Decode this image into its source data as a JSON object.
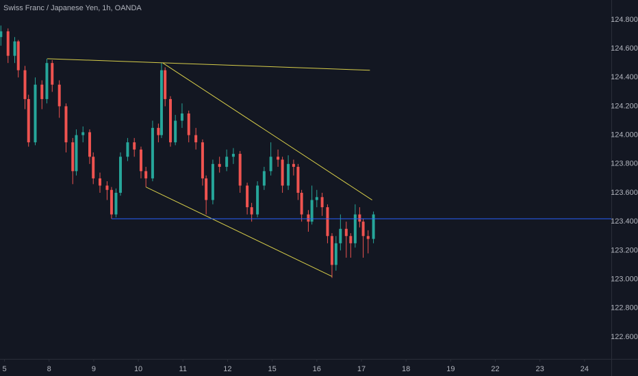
{
  "chart_data": {
    "type": "candlestick",
    "title": "Swiss Franc / Japanese Yen, 1h, OANDA",
    "up_color": "#26a69a",
    "down_color": "#ef5350",
    "grid": false,
    "xlim": [
      -0.1,
      13.6
    ],
    "xticks": [
      {
        "value": 0,
        "label": "5"
      },
      {
        "value": 1,
        "label": "8"
      },
      {
        "value": 2,
        "label": "9"
      },
      {
        "value": 3,
        "label": "10"
      },
      {
        "value": 4,
        "label": "11"
      },
      {
        "value": 5,
        "label": "12"
      },
      {
        "value": 6,
        "label": "15"
      },
      {
        "value": 7,
        "label": "16"
      },
      {
        "value": 8,
        "label": "17"
      },
      {
        "value": 9,
        "label": "18"
      },
      {
        "value": 10,
        "label": "19"
      },
      {
        "value": 11,
        "label": "22"
      },
      {
        "value": 12,
        "label": "23"
      },
      {
        "value": 13,
        "label": "24"
      }
    ],
    "ylim": [
      122.448,
      124.937
    ],
    "yticks": [
      {
        "value": 122.6,
        "label": "122.600"
      },
      {
        "value": 122.8,
        "label": "122.800"
      },
      {
        "value": 123.0,
        "label": "123.000"
      },
      {
        "value": 123.2,
        "label": "123.200"
      },
      {
        "value": 123.4,
        "label": "123.400"
      },
      {
        "value": 123.6,
        "label": "123.600"
      },
      {
        "value": 123.8,
        "label": "123.800"
      },
      {
        "value": 124.0,
        "label": "124.000"
      },
      {
        "value": 124.2,
        "label": "124.200"
      },
      {
        "value": 124.4,
        "label": "124.400"
      },
      {
        "value": 124.6,
        "label": "124.600"
      },
      {
        "value": 124.8,
        "label": "124.800"
      }
    ],
    "x": [
      -0.08,
      0.08,
      0.23,
      0.31,
      0.46,
      0.54,
      0.69,
      0.84,
      0.95,
      1.07,
      1.23,
      1.38,
      1.53,
      1.61,
      1.76,
      1.91,
      1.99,
      2.14,
      2.3,
      2.4,
      2.5,
      2.6,
      2.76,
      2.91,
      3.06,
      3.17,
      3.32,
      3.45,
      3.52,
      3.6,
      3.72,
      3.83,
      3.98,
      4.13,
      4.29,
      4.44,
      4.52,
      4.67,
      4.82,
      4.98,
      5.13,
      5.28,
      5.44,
      5.54,
      5.67,
      5.82,
      5.97,
      6.13,
      6.23,
      6.36,
      6.48,
      6.58,
      6.66,
      6.81,
      6.89,
      7.0,
      7.12,
      7.24,
      7.34,
      7.43,
      7.53,
      7.66,
      7.76,
      7.86,
      7.96,
      8.04,
      8.15,
      8.27
    ],
    "open": [
      124.68,
      124.72,
      124.55,
      124.65,
      124.45,
      124.25,
      123.95,
      124.35,
      124.25,
      124.5,
      124.35,
      124.2,
      123.95,
      123.75,
      124.0,
      124.02,
      123.85,
      123.7,
      123.65,
      123.62,
      123.45,
      123.6,
      123.85,
      123.95,
      123.9,
      123.75,
      123.7,
      124.05,
      124.0,
      124.45,
      124.25,
      123.95,
      124.1,
      124.15,
      124.0,
      123.95,
      123.7,
      123.55,
      123.8,
      123.78,
      123.85,
      123.87,
      123.65,
      123.5,
      123.45,
      123.65,
      123.75,
      123.85,
      123.83,
      123.65,
      123.8,
      123.78,
      123.6,
      123.45,
      123.4,
      123.55,
      123.57,
      123.5,
      123.3,
      123.1,
      123.25,
      123.35,
      123.3,
      123.25,
      123.45,
      123.4,
      123.3,
      123.28
    ],
    "high": [
      124.76,
      124.74,
      124.68,
      124.66,
      124.48,
      124.28,
      124.4,
      124.38,
      124.53,
      124.52,
      124.38,
      124.22,
      123.98,
      124.04,
      124.06,
      124.04,
      123.88,
      123.74,
      123.68,
      123.64,
      123.63,
      123.88,
      123.98,
      123.98,
      123.92,
      123.78,
      124.1,
      124.08,
      124.5,
      124.47,
      124.27,
      124.14,
      124.22,
      124.17,
      124.05,
      123.97,
      123.72,
      123.83,
      123.85,
      123.9,
      123.91,
      123.89,
      123.67,
      123.53,
      123.68,
      123.78,
      123.95,
      123.9,
      123.85,
      123.86,
      123.83,
      123.8,
      123.62,
      123.48,
      123.65,
      123.62,
      123.6,
      123.52,
      123.32,
      123.3,
      123.45,
      123.4,
      123.32,
      123.52,
      123.5,
      123.42,
      123.34,
      123.47
    ],
    "low": [
      124.62,
      124.5,
      124.5,
      124.4,
      124.18,
      123.92,
      123.93,
      124.18,
      124.22,
      124.3,
      124.12,
      123.88,
      123.66,
      123.72,
      123.95,
      123.8,
      123.66,
      123.6,
      123.55,
      123.42,
      123.43,
      123.58,
      123.82,
      123.85,
      123.7,
      123.64,
      123.68,
      123.95,
      123.98,
      124.2,
      123.92,
      123.93,
      124.05,
      123.95,
      123.9,
      123.65,
      123.45,
      123.52,
      123.74,
      123.75,
      123.8,
      123.6,
      123.45,
      123.4,
      123.43,
      123.62,
      123.72,
      123.78,
      123.6,
      123.62,
      123.72,
      123.55,
      123.4,
      123.33,
      123.38,
      123.5,
      123.44,
      123.25,
      123.01,
      123.06,
      123.2,
      123.15,
      123.15,
      123.22,
      123.36,
      123.15,
      123.18,
      123.25
    ],
    "close": [
      124.72,
      124.55,
      124.65,
      124.45,
      124.25,
      123.95,
      124.35,
      124.25,
      124.5,
      124.35,
      124.2,
      123.95,
      123.75,
      124.0,
      124.02,
      123.85,
      123.7,
      123.65,
      123.62,
      123.45,
      123.6,
      123.85,
      123.95,
      123.9,
      123.75,
      123.7,
      124.05,
      124.0,
      124.45,
      124.25,
      123.95,
      124.1,
      124.15,
      124.0,
      123.95,
      123.7,
      123.55,
      123.8,
      123.78,
      123.85,
      123.87,
      123.65,
      123.5,
      123.45,
      123.65,
      123.75,
      123.85,
      123.83,
      123.65,
      123.8,
      123.78,
      123.6,
      123.45,
      123.4,
      123.55,
      123.57,
      123.5,
      123.3,
      123.1,
      123.25,
      123.35,
      123.3,
      123.25,
      123.45,
      123.4,
      123.3,
      123.28,
      123.45
    ],
    "lines": [
      {
        "x": [
          0.96,
          8.19
        ],
        "y": [
          124.53,
          124.45
        ],
        "color": "#d9cf4a"
      },
      {
        "x": [
          3.55,
          8.24
        ],
        "y": [
          124.5,
          123.55
        ],
        "color": "#d9cf4a"
      },
      {
        "x": [
          3.17,
          7.34
        ],
        "y": [
          123.64,
          123.02
        ],
        "color": "#d9cf4a"
      },
      {
        "x": [
          2.4,
          13.6
        ],
        "y": [
          123.42,
          123.42
        ],
        "color": "#2962ff"
      }
    ]
  }
}
